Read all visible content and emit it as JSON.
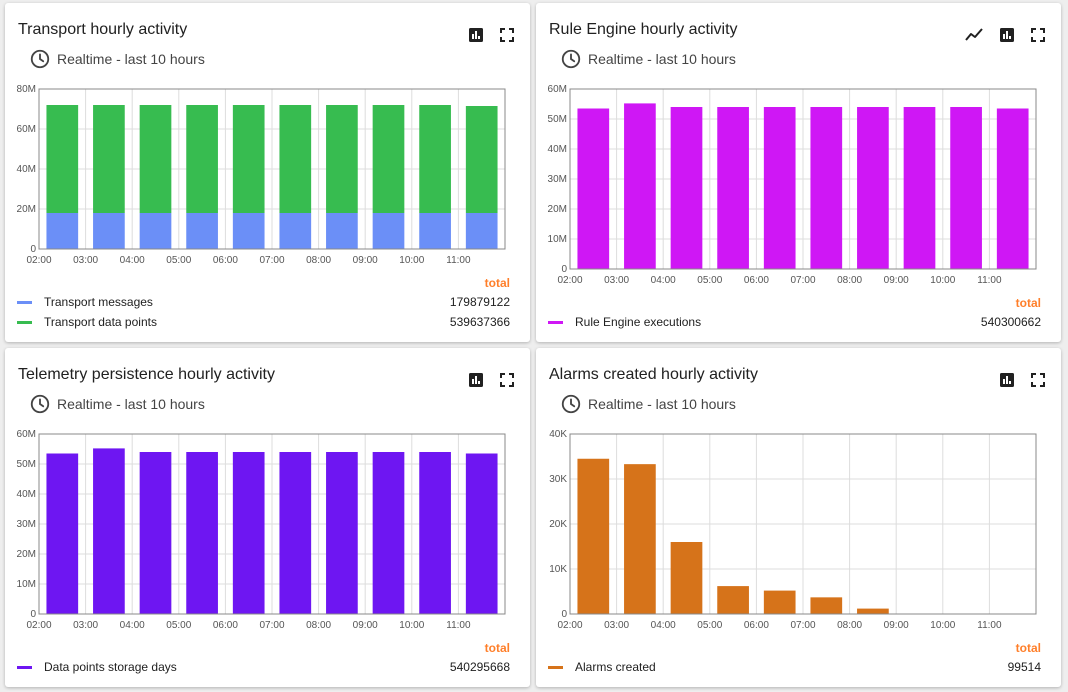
{
  "hours": [
    "02:00",
    "03:00",
    "04:00",
    "05:00",
    "06:00",
    "07:00",
    "08:00",
    "09:00",
    "10:00",
    "11:00"
  ],
  "widgets": [
    {
      "title": "Transport hourly activity",
      "timewindow": "Realtime - last 10 hours",
      "total_header": "total",
      "legend": [
        {
          "name": "Transport messages",
          "total": "179879122",
          "color": "#6b8ff7"
        },
        {
          "name": "Transport data points",
          "total": "539637366",
          "color": "#37bc50"
        }
      ]
    },
    {
      "title": "Rule Engine hourly activity",
      "timewindow": "Realtime - last 10 hours",
      "total_header": "total",
      "legend": [
        {
          "name": "Rule Engine executions",
          "total": "540300662",
          "color": "#cf17f5"
        }
      ]
    },
    {
      "title": "Telemetry persistence hourly activity",
      "timewindow": "Realtime - last 10 hours",
      "total_header": "total",
      "legend": [
        {
          "name": "Data points storage days",
          "total": "540295668",
          "color": "#6e16f2"
        }
      ]
    },
    {
      "title": "Alarms created hourly activity",
      "timewindow": "Realtime - last 10 hours",
      "total_header": "total",
      "legend": [
        {
          "name": "Alarms created",
          "total": "99514",
          "color": "#d6731a"
        }
      ]
    }
  ],
  "chart_data": [
    {
      "type": "bar",
      "stacked": true,
      "categories": [
        "02:00",
        "03:00",
        "04:00",
        "05:00",
        "06:00",
        "07:00",
        "08:00",
        "09:00",
        "10:00",
        "11:00"
      ],
      "series": [
        {
          "name": "Transport messages",
          "color": "#6b8ff7",
          "values": [
            18000000,
            18000000,
            18000000,
            18000000,
            18000000,
            18000000,
            18000000,
            18000000,
            18000000,
            18000000
          ]
        },
        {
          "name": "Transport data points",
          "color": "#37bc50",
          "values": [
            54000000,
            54000000,
            54000000,
            54000000,
            54000000,
            54000000,
            54000000,
            54000000,
            54000000,
            53500000
          ]
        }
      ],
      "ylim": [
        0,
        80000000
      ],
      "yticks": [
        0,
        20000000,
        40000000,
        60000000,
        80000000
      ],
      "ytick_labels": [
        "0",
        "20M",
        "40M",
        "60M",
        "80M"
      ],
      "grid": true
    },
    {
      "type": "bar",
      "categories": [
        "02:00",
        "03:00",
        "04:00",
        "05:00",
        "06:00",
        "07:00",
        "08:00",
        "09:00",
        "10:00",
        "11:00"
      ],
      "series": [
        {
          "name": "Rule Engine executions",
          "color": "#cf17f5",
          "values": [
            53500000,
            55200000,
            54000000,
            54000000,
            54000000,
            54000000,
            54000000,
            54000000,
            54000000,
            53500000
          ]
        }
      ],
      "ylim": [
        0,
        60000000
      ],
      "yticks": [
        0,
        10000000,
        20000000,
        30000000,
        40000000,
        50000000,
        60000000
      ],
      "ytick_labels": [
        "0",
        "10M",
        "20M",
        "30M",
        "40M",
        "50M",
        "60M"
      ],
      "grid": true
    },
    {
      "type": "bar",
      "categories": [
        "02:00",
        "03:00",
        "04:00",
        "05:00",
        "06:00",
        "07:00",
        "08:00",
        "09:00",
        "10:00",
        "11:00"
      ],
      "series": [
        {
          "name": "Data points storage days",
          "color": "#6e16f2",
          "values": [
            53500000,
            55200000,
            54000000,
            54000000,
            54000000,
            54000000,
            54000000,
            54000000,
            54000000,
            53500000
          ]
        }
      ],
      "ylim": [
        0,
        60000000
      ],
      "yticks": [
        0,
        10000000,
        20000000,
        30000000,
        40000000,
        50000000,
        60000000
      ],
      "ytick_labels": [
        "0",
        "10M",
        "20M",
        "30M",
        "40M",
        "50M",
        "60M"
      ],
      "grid": true
    },
    {
      "type": "bar",
      "categories": [
        "02:00",
        "03:00",
        "04:00",
        "05:00",
        "06:00",
        "07:00",
        "08:00",
        "09:00",
        "10:00",
        "11:00"
      ],
      "series": [
        {
          "name": "Alarms created",
          "color": "#d6731a",
          "values": [
            34500,
            33300,
            16000,
            6200,
            5200,
            3700,
            1200,
            100,
            100,
            100
          ]
        }
      ],
      "ylim": [
        0,
        40000
      ],
      "yticks": [
        0,
        10000,
        20000,
        30000,
        40000
      ],
      "ytick_labels": [
        "0",
        "10K",
        "20K",
        "30K",
        "40K"
      ],
      "grid": true
    }
  ]
}
